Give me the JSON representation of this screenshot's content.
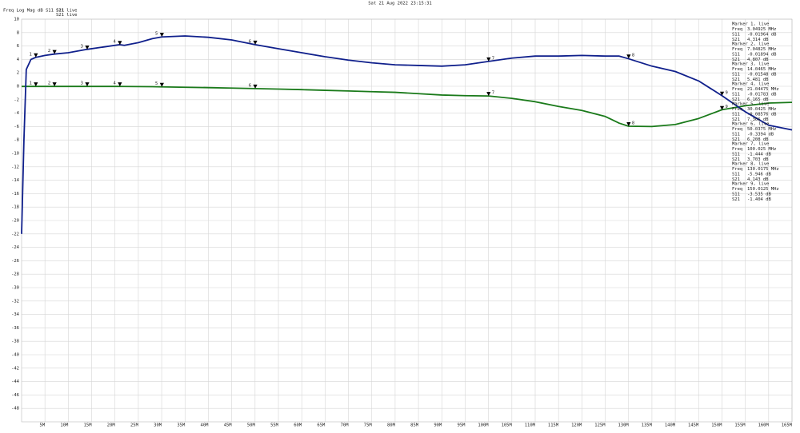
{
  "chart_data": {
    "type": "line",
    "title": "Sat 21 Aug 2022 23:15:31",
    "subtitle": "Freq Log Mag dB S11 S21",
    "x": [
      0,
      0.5,
      1,
      2,
      3,
      5,
      7,
      10,
      14,
      18,
      21,
      22,
      25,
      28,
      30,
      35,
      40,
      45,
      50,
      55,
      60,
      65,
      70,
      75,
      80,
      85,
      90,
      95,
      100,
      105,
      110,
      115,
      120,
      125,
      128,
      130,
      135,
      140,
      145,
      150,
      155,
      160,
      165
    ],
    "series": [
      {
        "name": "S11 live",
        "color": "#1a7a1a",
        "values": [
          -0.02,
          -0.02,
          -0.02,
          -0.02,
          -0.02,
          -0.02,
          -0.02,
          -0.02,
          -0.02,
          -0.02,
          -0.02,
          -0.03,
          -0.04,
          -0.06,
          -0.09,
          -0.15,
          -0.2,
          -0.27,
          -0.34,
          -0.42,
          -0.5,
          -0.6,
          -0.7,
          -0.8,
          -0.9,
          -1.1,
          -1.3,
          -1.4,
          -1.44,
          -1.8,
          -2.3,
          -3.0,
          -3.6,
          -4.5,
          -5.5,
          -5.95,
          -6.0,
          -5.7,
          -4.8,
          -3.5,
          -2.9,
          -2.5,
          -2.4
        ]
      },
      {
        "name": "S21 live",
        "color": "#10208c",
        "values": [
          -22,
          -8,
          2.5,
          4.0,
          4.3,
          4.6,
          4.8,
          5.0,
          5.5,
          5.9,
          6.2,
          6.1,
          6.5,
          7.1,
          7.35,
          7.5,
          7.3,
          6.9,
          6.2,
          5.6,
          5.0,
          4.4,
          3.9,
          3.5,
          3.2,
          3.1,
          3.0,
          3.2,
          3.7,
          4.2,
          4.5,
          4.5,
          4.6,
          4.5,
          4.5,
          4.1,
          3.0,
          2.2,
          0.8,
          -1.4,
          -3.8,
          -5.8,
          -6.5
        ]
      }
    ],
    "xlim": [
      0,
      165
    ],
    "ylim": [
      -50,
      10
    ],
    "yticks": [
      10,
      8,
      6,
      4,
      2,
      0,
      -2,
      -4,
      -6,
      -8,
      -10,
      -12,
      -14,
      -16,
      -18,
      -20,
      -22,
      -24,
      -26,
      -28,
      -30,
      -32,
      -34,
      -36,
      -38,
      -40,
      -42,
      -44,
      -46,
      -48
    ],
    "xticks": [
      {
        "value": 5,
        "label": "5M"
      },
      {
        "value": 10,
        "label": "10M"
      },
      {
        "value": 15,
        "label": "15M"
      },
      {
        "value": 20,
        "label": "20M"
      },
      {
        "value": 25,
        "label": "25M"
      },
      {
        "value": 30,
        "label": "30M"
      },
      {
        "value": 35,
        "label": "35M"
      },
      {
        "value": 40,
        "label": "40M"
      },
      {
        "value": 45,
        "label": "45M"
      },
      {
        "value": 50,
        "label": "50M"
      },
      {
        "value": 55,
        "label": "55M"
      },
      {
        "value": 60,
        "label": "60M"
      },
      {
        "value": 65,
        "label": "65M"
      },
      {
        "value": 70,
        "label": "70M"
      },
      {
        "value": 75,
        "label": "75M"
      },
      {
        "value": 80,
        "label": "80M"
      },
      {
        "value": 85,
        "label": "85M"
      },
      {
        "value": 90,
        "label": "90M"
      },
      {
        "value": 95,
        "label": "95M"
      },
      {
        "value": 100,
        "label": "100M"
      },
      {
        "value": 105,
        "label": "105M"
      },
      {
        "value": 110,
        "label": "110M"
      },
      {
        "value": 115,
        "label": "115M"
      },
      {
        "value": 120,
        "label": "120M"
      },
      {
        "value": 125,
        "label": "125M"
      },
      {
        "value": 130,
        "label": "130M"
      },
      {
        "value": 135,
        "label": "135M"
      },
      {
        "value": 140,
        "label": "140M"
      },
      {
        "value": 145,
        "label": "145M"
      },
      {
        "value": 150,
        "label": "150M"
      },
      {
        "value": 155,
        "label": "155M"
      },
      {
        "value": 160,
        "label": "160M"
      },
      {
        "value": 165,
        "label": "165M"
      }
    ],
    "grid": true,
    "marker_field_labels": [
      "Freq",
      "S11",
      "S21"
    ],
    "markers": [
      {
        "id": "1",
        "name": "Marker 1, live",
        "freq": 3.04925,
        "freq_label": "3.04925 MHz",
        "s11": -0.01964,
        "s11_label": "-0.01964 dB",
        "s21": 4.314,
        "s21_label": "4.314 dB"
      },
      {
        "id": "2",
        "name": "Marker 2, live",
        "freq": 7.04825,
        "freq_label": "7.04825 MHz",
        "s11": -0.01894,
        "s11_label": "-0.01894 dB",
        "s21": 4.807,
        "s21_label": "4.807 dB"
      },
      {
        "id": "3",
        "name": "Marker 3, live",
        "freq": 14.0465,
        "freq_label": "14.0465 MHz",
        "s11": -0.01548,
        "s11_label": "-0.01548 dB",
        "s21": 5.481,
        "s21_label": "5.481 dB"
      },
      {
        "id": "4",
        "name": "Marker 4, live",
        "freq": 21.04475,
        "freq_label": "21.04475 MHz",
        "s11": -0.01783,
        "s11_label": "-0.01783 dB",
        "s21": 6.165,
        "s21_label": "6.165 dB"
      },
      {
        "id": "5",
        "name": "Marker 5, live",
        "freq": 30.0425,
        "freq_label": "30.0425 MHz",
        "s11": -0.08576,
        "s11_label": "-0.08576 dB",
        "s21": 7.366,
        "s21_label": "7.366 dB"
      },
      {
        "id": "6",
        "name": "Marker 6, live",
        "freq": 50.0375,
        "freq_label": "50.0375 MHz",
        "s11": -0.3394,
        "s11_label": "-0.3394 dB",
        "s21": 6.208,
        "s21_label": "6.208 dB"
      },
      {
        "id": "7",
        "name": "Marker 7, live",
        "freq": 100.025,
        "freq_label": "100.025 MHz",
        "s11": -1.444,
        "s11_label": "-1.444 dB",
        "s21": 3.703,
        "s21_label": "3.703 dB"
      },
      {
        "id": "8",
        "name": "Marker 8, live",
        "freq": 130.0175,
        "freq_label": "130.0175 MHz",
        "s11": -5.946,
        "s11_label": "-5.946 dB",
        "s21": 4.143,
        "s21_label": "4.143 dB"
      },
      {
        "id": "9",
        "name": "Marker 9, live",
        "freq": 150.0125,
        "freq_label": "150.0125 MHz",
        "s11": -3.535,
        "s11_label": "-3.535 dB",
        "s21": -1.404,
        "s21_label": "-1.404 dB"
      }
    ]
  }
}
